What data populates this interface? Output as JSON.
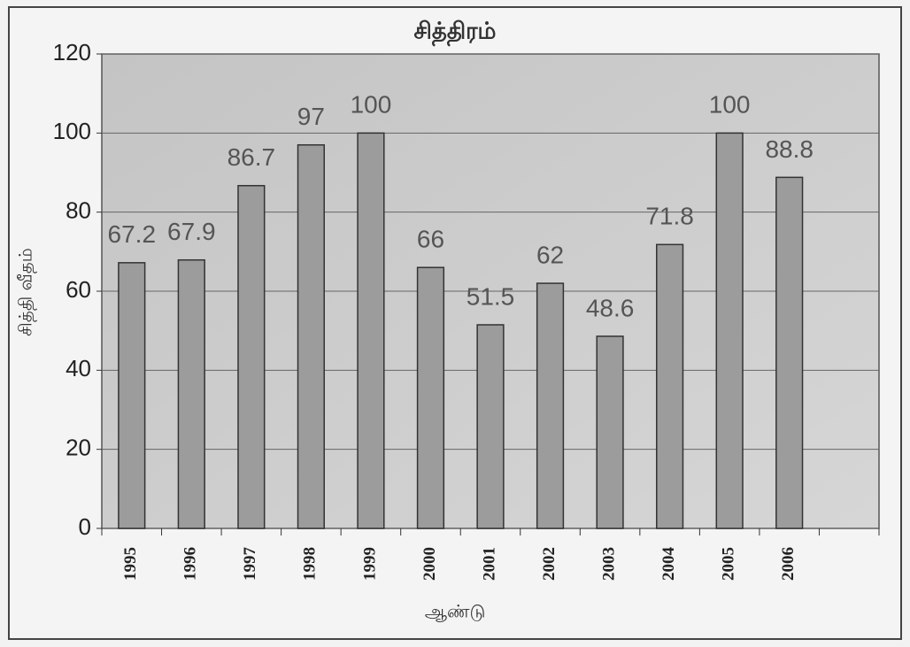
{
  "chart_data": {
    "type": "bar",
    "title": "சித்திரம்",
    "x_label": "ஆண்டு",
    "y_label": "சித்தி வீதம்",
    "categories": [
      "1995",
      "1996",
      "1997",
      "1998",
      "1999",
      "2000",
      "2001",
      "2002",
      "2003",
      "2004",
      "2005",
      "2006",
      null
    ],
    "values": [
      67.2,
      67.9,
      86.7,
      97,
      100,
      66,
      51.5,
      62,
      48.6,
      71.8,
      100,
      88.8,
      null
    ],
    "color": "#9c9c9c",
    "ylim": [
      0,
      120
    ],
    "yticks": [
      0,
      20,
      40,
      60,
      80,
      100,
      120
    ],
    "grid": true
  }
}
